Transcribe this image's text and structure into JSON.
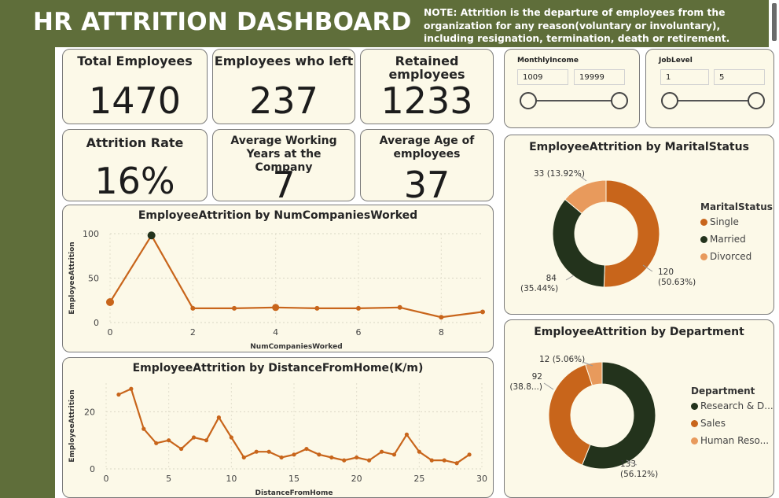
{
  "header": {
    "title": "HR ATTRITION DASHBOARD",
    "note": "NOTE: Attrition is the departure of employees from the organization for any reason(voluntary or involuntary), including resignation, termination, death or retirement."
  },
  "kpis": {
    "total_employees": {
      "label": "Total Employees",
      "value": "1470"
    },
    "employees_left": {
      "label": "Employees who left",
      "value": "237"
    },
    "retained": {
      "label": "Retained employees",
      "value": "1233"
    },
    "attrition_rate": {
      "label": "Attrition Rate",
      "value": "16%"
    },
    "avg_years": {
      "label": "Average Working Years at the Company",
      "value": "7"
    },
    "avg_age": {
      "label": "Average Age of employees",
      "value": "37"
    }
  },
  "slicers": {
    "monthly_income": {
      "title": "MonthlyIncome",
      "min": "1009",
      "max": "19999"
    },
    "job_level": {
      "title": "JobLevel",
      "min": "1",
      "max": "5"
    }
  },
  "colors": {
    "accent_orange": "#c8651b",
    "dark_green": "#23331c",
    "light_orange": "#e89a5c",
    "header_green": "#5f6e3a",
    "card_bg": "#fcf9e8"
  },
  "chart_data": [
    {
      "type": "line",
      "title": "EmployeeAttrition by NumCompaniesWorked",
      "xlabel": "NumCompaniesWorked",
      "ylabel": "EmployeeAttrition",
      "x": [
        0,
        1,
        2,
        3,
        4,
        5,
        6,
        7,
        8,
        9
      ],
      "values": [
        23,
        98,
        16,
        16,
        17,
        16,
        16,
        17,
        6,
        12
      ],
      "xticks": [
        "0",
        "2",
        "4",
        "6",
        "8"
      ],
      "yticks": [
        "0",
        "50",
        "100"
      ],
      "xlim": [
        0,
        9
      ],
      "ylim": [
        0,
        100
      ],
      "grid": true
    },
    {
      "type": "line",
      "title": "EmployeeAttrition by DistanceFromHome(K/m)",
      "xlabel": "DistanceFromHome",
      "ylabel": "EmployeeAttrition",
      "x": [
        1,
        2,
        3,
        4,
        5,
        6,
        7,
        8,
        9,
        10,
        11,
        12,
        13,
        14,
        15,
        16,
        17,
        18,
        19,
        20,
        21,
        22,
        23,
        24,
        25,
        26,
        27,
        28,
        29
      ],
      "values": [
        26,
        28,
        14,
        9,
        10,
        7,
        11,
        10,
        18,
        11,
        4,
        6,
        6,
        4,
        5,
        7,
        5,
        4,
        3,
        4,
        3,
        6,
        5,
        12,
        6,
        3,
        3,
        2,
        5
      ],
      "xticks": [
        "0",
        "5",
        "10",
        "15",
        "20",
        "25",
        "30"
      ],
      "yticks": [
        "0",
        "20"
      ],
      "xlim": [
        0,
        30
      ],
      "ylim": [
        0,
        30
      ],
      "grid": true
    },
    {
      "type": "pie",
      "title": "EmployeeAttrition by MaritalStatus",
      "legend_title": "MaritalStatus",
      "legend_position": "right",
      "labels": [
        "Single",
        "Married",
        "Divorced"
      ],
      "values": [
        120,
        84,
        33
      ],
      "percents": [
        "50.63%",
        "35.44%",
        "13.92%"
      ],
      "data_labels": [
        "120 (50.63%)",
        "84 (35.44%)",
        "33 (13.92%)"
      ]
    },
    {
      "type": "pie",
      "title": "EmployeeAttrition by Department",
      "legend_title": "Department",
      "legend_position": "right",
      "labels": [
        "Research & D...",
        "Sales",
        "Human Reso..."
      ],
      "values": [
        133,
        92,
        12
      ],
      "percents": [
        "56.12%",
        "38.8...",
        "5.06%"
      ],
      "data_labels": [
        "133 (56.12%)",
        "92 (38.8...)",
        "12 (5.06%)"
      ]
    }
  ]
}
